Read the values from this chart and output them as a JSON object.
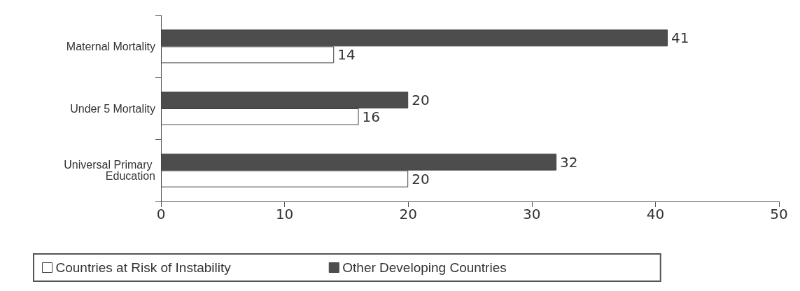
{
  "chart_data": {
    "type": "bar",
    "orientation": "horizontal",
    "categories": [
      "Maternal Mortality",
      "Under 5 Mortality",
      "Universal Primary Education"
    ],
    "series": [
      {
        "name": "Countries at Risk of Instability",
        "color": "#ffffff",
        "values": [
          14,
          16,
          20
        ]
      },
      {
        "name": "Other Developing Countries",
        "color": "#4d4d4d",
        "values": [
          41,
          20,
          32
        ]
      }
    ],
    "xlim": [
      0,
      50
    ],
    "xticks": [
      0,
      10,
      20,
      30,
      40,
      50
    ],
    "grid": false,
    "legend": "bottom",
    "data_labels": true
  }
}
